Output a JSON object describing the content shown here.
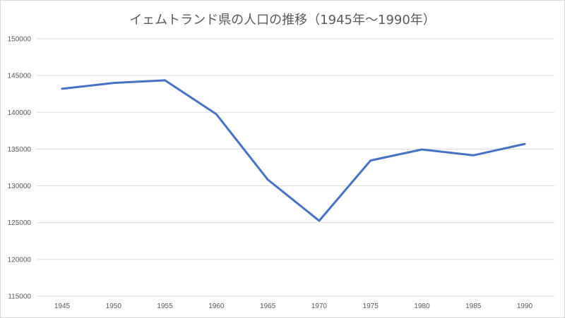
{
  "chart_data": {
    "type": "line",
    "title": "イェムトランド県の人口の推移（1945年〜1990年）",
    "xlabel": "",
    "ylabel": "",
    "categories": [
      "1945",
      "1950",
      "1955",
      "1960",
      "1965",
      "1970",
      "1975",
      "1980",
      "1985",
      "1990"
    ],
    "series": [
      {
        "values": [
          143200,
          144000,
          144350,
          139750,
          130850,
          125250,
          133450,
          134950,
          134150,
          135700
        ]
      }
    ],
    "ylim": [
      115000,
      150000
    ],
    "yticks": [
      115000,
      120000,
      125000,
      130000,
      135000,
      140000,
      145000,
      150000
    ],
    "grid": "horizontal",
    "legend": "none",
    "colors": {
      "series": "#4472c4",
      "grid": "#d9d9d9",
      "text": "#595959"
    }
  }
}
